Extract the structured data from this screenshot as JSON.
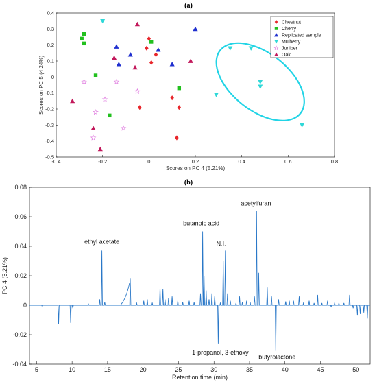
{
  "panels": {
    "a_label": "(a)",
    "b_label": "(b)"
  },
  "colors": {
    "Chestnut": "#e8262b",
    "Cherry": "#22c01e",
    "Replicated sample": "#1f2fcf",
    "Mulberry": "#2fd8d8",
    "Juniper": "#e07ee0",
    "Oak": "#c2185b",
    "ellipse": "#22d4e6",
    "line": "#2a78c8",
    "zeroline": "#888888"
  },
  "chart_data": [
    {
      "type": "scatter",
      "title": "(a)",
      "xlabel": "Scores on PC 4 (5.21%)",
      "ylabel": "Scores on PC 5 (4.24%)",
      "xlim": [
        -0.4,
        0.8
      ],
      "ylim": [
        -0.5,
        0.4
      ],
      "xticks": [
        "-0.4",
        "-0.2",
        "0",
        "0.2",
        "0.4",
        "0.6",
        "0.8"
      ],
      "yticks": [
        "-0.5",
        "-0.4",
        "-0.3",
        "-0.2",
        "-0.1",
        "0",
        "0.1",
        "0.2",
        "0.3",
        "0.4"
      ],
      "legend_position": "top-right",
      "series": [
        {
          "name": "Chestnut",
          "marker": "diamond",
          "points": [
            [
              -0.01,
              0.18
            ],
            [
              0.01,
              0.09
            ],
            [
              0.03,
              0.14
            ],
            [
              -0.04,
              -0.19
            ],
            [
              0.1,
              -0.13
            ],
            [
              0.13,
              -0.19
            ],
            [
              0.12,
              -0.38
            ],
            [
              0.0,
              0.24
            ]
          ]
        },
        {
          "name": "Cherry",
          "marker": "square",
          "points": [
            [
              -0.28,
              0.27
            ],
            [
              -0.29,
              0.24
            ],
            [
              -0.28,
              0.21
            ],
            [
              -0.23,
              0.01
            ],
            [
              -0.17,
              -0.24
            ],
            [
              0.13,
              -0.07
            ],
            [
              0.01,
              0.22
            ]
          ]
        },
        {
          "name": "Replicated sample",
          "marker": "triangle-up",
          "points": [
            [
              -0.14,
              0.19
            ],
            [
              -0.08,
              0.14
            ],
            [
              -0.13,
              0.08
            ],
            [
              0.04,
              0.17
            ],
            [
              0.1,
              0.08
            ],
            [
              0.2,
              0.3
            ]
          ]
        },
        {
          "name": "Mulberry",
          "marker": "triangle-down",
          "points": [
            [
              -0.2,
              0.35
            ],
            [
              0.35,
              0.18
            ],
            [
              0.44,
              0.18
            ],
            [
              0.29,
              -0.11
            ],
            [
              0.48,
              -0.03
            ],
            [
              0.48,
              -0.06
            ],
            [
              0.66,
              -0.3
            ]
          ]
        },
        {
          "name": "Juniper",
          "marker": "star",
          "points": [
            [
              -0.28,
              -0.03
            ],
            [
              -0.14,
              -0.03
            ],
            [
              -0.19,
              -0.14
            ],
            [
              -0.05,
              -0.09
            ],
            [
              -0.23,
              -0.22
            ],
            [
              -0.11,
              -0.32
            ],
            [
              -0.24,
              -0.38
            ]
          ]
        },
        {
          "name": "Oak",
          "marker": "triangle-up",
          "points": [
            [
              -0.05,
              0.33
            ],
            [
              -0.15,
              0.12
            ],
            [
              -0.06,
              0.06
            ],
            [
              -0.33,
              -0.15
            ],
            [
              -0.24,
              -0.32
            ],
            [
              -0.21,
              -0.45
            ],
            [
              0.18,
              0.1
            ]
          ]
        }
      ],
      "ellipse": {
        "center": [
          0.48,
          -0.03
        ],
        "semi_axes": [
          0.22,
          0.12
        ],
        "angle_deg": -38
      }
    },
    {
      "type": "line",
      "title": "(b)",
      "xlabel": "Retention time (min)",
      "ylabel": "PC 4 (5.21%)",
      "xlim": [
        4,
        52
      ],
      "ylim": [
        -0.04,
        0.08
      ],
      "xticks": [
        "5",
        "10",
        "15",
        "20",
        "25",
        "30",
        "35",
        "40",
        "45",
        "50"
      ],
      "yticks": [
        "-0.04",
        "-0.02",
        "0",
        "0.02",
        "0.04",
        "0.06",
        "0.08"
      ],
      "annotations": [
        {
          "text": "ethyl acetate",
          "x": 14.2,
          "y": 0.038
        },
        {
          "text": "butanoic acid",
          "x": 28.4,
          "y": 0.05
        },
        {
          "text": "N.I.",
          "x": 31.3,
          "y": 0.037
        },
        {
          "text": "acetylfuran",
          "x": 36.0,
          "y": 0.064
        },
        {
          "text": "1-propanol, 3-ethoxy",
          "x": 30.6,
          "y": -0.026
        },
        {
          "text": "butyrolactone",
          "x": 38.7,
          "y": -0.031
        }
      ],
      "peaks": [
        [
          5.8,
          -0.001
        ],
        [
          8.1,
          -0.013
        ],
        [
          9.8,
          -0.012
        ],
        [
          10.1,
          -0.002
        ],
        [
          12.3,
          0.001
        ],
        [
          13.9,
          0.004
        ],
        [
          14.2,
          0.037
        ],
        [
          14.6,
          0.002
        ],
        [
          18.2,
          0.018
        ],
        [
          19.1,
          0.0015
        ],
        [
          20.1,
          0.003
        ],
        [
          20.6,
          0.004
        ],
        [
          21.3,
          0.0015
        ],
        [
          22.4,
          0.012
        ],
        [
          22.8,
          0.011
        ],
        [
          23.1,
          0.004
        ],
        [
          23.6,
          0.005
        ],
        [
          24.1,
          0.006
        ],
        [
          24.9,
          0.003
        ],
        [
          25.6,
          0.002
        ],
        [
          26.5,
          0.003
        ],
        [
          27.2,
          0.002
        ],
        [
          28.1,
          0.008
        ],
        [
          28.4,
          0.05
        ],
        [
          28.6,
          0.02
        ],
        [
          28.9,
          0.01
        ],
        [
          29.3,
          0.004
        ],
        [
          29.7,
          0.008
        ],
        [
          30.1,
          0.006
        ],
        [
          30.6,
          -0.026
        ],
        [
          30.9,
          0.0015
        ],
        [
          31.3,
          0.03
        ],
        [
          31.6,
          0.037
        ],
        [
          31.9,
          0.008
        ],
        [
          32.3,
          0.003
        ],
        [
          33.1,
          0.0015
        ],
        [
          33.6,
          0.006
        ],
        [
          34.0,
          0.002
        ],
        [
          34.6,
          0.003
        ],
        [
          35.1,
          0.002
        ],
        [
          35.7,
          0.006
        ],
        [
          36.0,
          0.064
        ],
        [
          36.3,
          0.022
        ],
        [
          37.5,
          0.012
        ],
        [
          38.1,
          0.006
        ],
        [
          38.7,
          -0.031
        ],
        [
          39.1,
          0.004
        ],
        [
          40.1,
          0.0025
        ],
        [
          40.6,
          0.003
        ],
        [
          41.2,
          0.003
        ],
        [
          42.0,
          0.006
        ],
        [
          42.6,
          0.0015
        ],
        [
          43.4,
          0.003
        ],
        [
          44.1,
          0.0015
        ],
        [
          44.6,
          0.007
        ],
        [
          45.2,
          0.0015
        ],
        [
          46.0,
          0.003
        ],
        [
          46.5,
          -0.001
        ],
        [
          47.0,
          0.0015
        ],
        [
          47.6,
          0.0015
        ],
        [
          48.3,
          0.0015
        ],
        [
          49.1,
          0.007
        ],
        [
          49.6,
          -0.002
        ],
        [
          50.2,
          -0.007
        ],
        [
          50.6,
          -0.006
        ],
        [
          51.1,
          -0.005
        ],
        [
          51.6,
          -0.009
        ]
      ]
    }
  ]
}
